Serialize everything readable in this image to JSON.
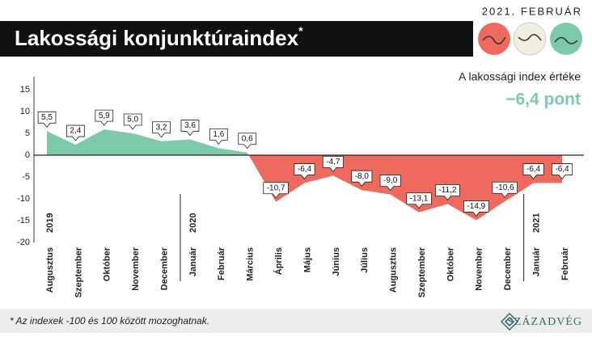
{
  "header": {
    "date": "2021. FEBRUÁR",
    "title": "Lakossági konjunktúraindex",
    "title_mark": "*"
  },
  "chart_data": {
    "type": "area",
    "subtitle": "A lakossági index értéke",
    "headline_value": "−6,4 pont",
    "categories": [
      "Augusztus",
      "Szeptember",
      "Október",
      "November",
      "December",
      "Január",
      "Február",
      "Március",
      "Április",
      "Május",
      "Június",
      "Július",
      "Augusztus",
      "Szeptember",
      "Október",
      "November",
      "December",
      "Január",
      "Február"
    ],
    "years": [
      {
        "label": "2019",
        "category": "Augusztus"
      },
      {
        "label": "2020",
        "category": "Január"
      },
      {
        "label": "2021",
        "category": "Január"
      }
    ],
    "values": [
      5.5,
      2.4,
      5.9,
      5.0,
      3.2,
      3.6,
      1.6,
      0.6,
      -10.7,
      -6.4,
      -4.7,
      -8.0,
      -9.0,
      -13.1,
      -11.2,
      -14.9,
      -10.6,
      -6.4,
      -6.4
    ],
    "value_labels": [
      "5,5",
      "2,4",
      "5,9",
      "5,0",
      "3,2",
      "3,6",
      "1,6",
      "0,6",
      "-10,7",
      "-6,4",
      "-4,7",
      "-8,0",
      "-9,0",
      "-13,1",
      "-11,2",
      "-14,9",
      "-10,6",
      "-6,4",
      "-6,4"
    ],
    "positive_color": "#7ccaa8",
    "negative_color": "#ef6a5e",
    "ylim": [
      -20,
      15
    ],
    "yticks": [
      15,
      10,
      5,
      0,
      -5,
      -10,
      -15,
      -20
    ]
  },
  "footer": {
    "note": "* Az indexek -100 és 100 között mozoghatnak.",
    "logo": "SZÁZADVÉG"
  }
}
